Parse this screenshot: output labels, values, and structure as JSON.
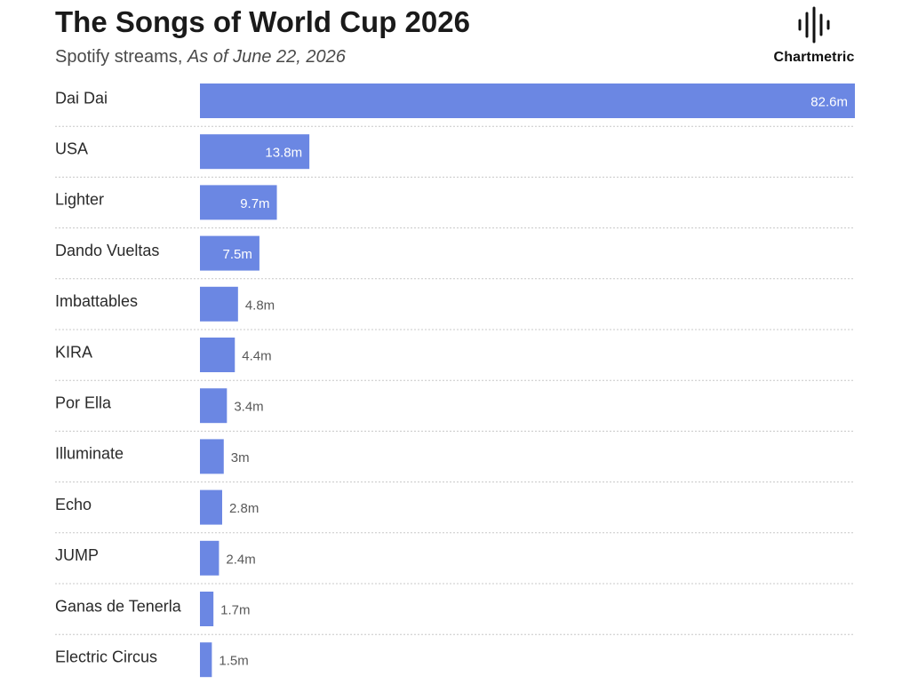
{
  "header": {
    "title": "The Songs of World Cup 2026",
    "subtitle_prefix": "Spotify streams, ",
    "subtitle_date": "As of June 22, 2026"
  },
  "brand": {
    "name": "Chartmetric",
    "icon": "waveform-logo-icon"
  },
  "colors": {
    "bar": "#6b87e3",
    "separator": "#c8c8c8"
  },
  "chart_data": {
    "type": "bar",
    "orientation": "horizontal",
    "title": "The Songs of World Cup 2026",
    "subtitle": "Spotify streams, As of June 22, 2026",
    "categories": [
      "Dai Dai",
      "USA",
      "Lighter",
      "Dando Vueltas",
      "Imbattables",
      "KIRA",
      "Por Ella",
      "Illuminate",
      "Echo",
      "JUMP",
      "Ganas de Tenerla",
      "Electric Circus"
    ],
    "values": [
      82.6,
      13.8,
      9.7,
      7.5,
      4.8,
      4.4,
      3.4,
      3.0,
      2.8,
      2.4,
      1.7,
      1.5
    ],
    "value_labels": [
      "82.6m",
      "13.8m",
      "9.7m",
      "7.5m",
      "4.8m",
      "4.4m",
      "3.4m",
      "3m",
      "2.8m",
      "2.4m",
      "1.7m",
      "1.5m"
    ],
    "unit": "m",
    "xlim": [
      0,
      82.6
    ],
    "grid": false
  }
}
